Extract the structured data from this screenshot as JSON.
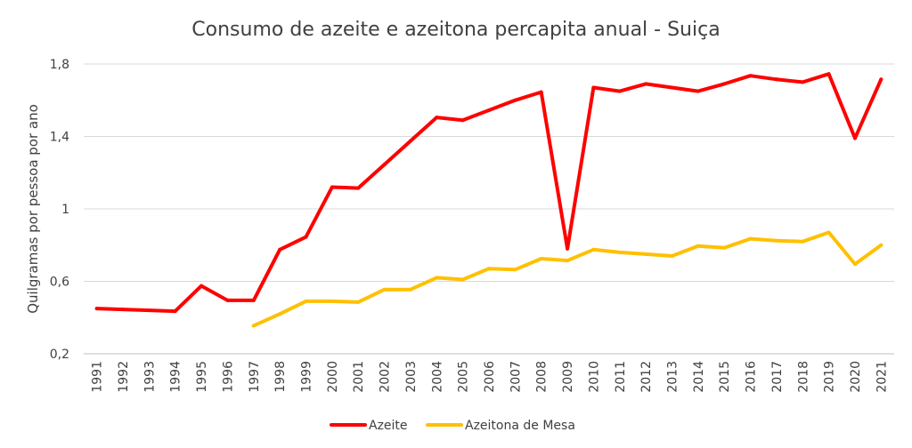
{
  "chart_data": {
    "type": "line",
    "title": "Consumo de azeite e azeitona percapita anual - Suiça",
    "xlabel": "",
    "ylabel": "Quilgramas por pessoa por ano",
    "ylim": [
      0.2,
      1.8
    ],
    "yticks": [
      0.2,
      0.6,
      1,
      1.4,
      1.8
    ],
    "ytick_labels": [
      "0,2",
      "0,6",
      "1",
      "1,4",
      "1,8"
    ],
    "grid": true,
    "legend": "bottom",
    "categories": [
      "1991",
      "1992",
      "1993",
      "1994",
      "1995",
      "1996",
      "1997",
      "1998",
      "1999",
      "2000",
      "2001",
      "2002",
      "2003",
      "2004",
      "2005",
      "2006",
      "2007",
      "2008",
      "2009",
      "2010",
      "2011",
      "2012",
      "2013",
      "2014",
      "2015",
      "2016",
      "2017",
      "2018",
      "2019",
      "2020",
      "2021"
    ],
    "series": [
      {
        "name": "Azeite",
        "color": "#ff0000",
        "values": [
          0.45,
          0.445,
          0.44,
          0.435,
          0.575,
          0.495,
          0.495,
          0.775,
          0.845,
          1.12,
          1.115,
          1.245,
          1.375,
          1.505,
          1.49,
          1.545,
          1.6,
          1.645,
          0.78,
          1.67,
          1.65,
          1.69,
          1.67,
          1.65,
          1.69,
          1.735,
          1.715,
          1.7,
          1.745,
          1.39,
          1.715
        ]
      },
      {
        "name": "Azeitona de Mesa",
        "color": "#ffc000",
        "values": [
          null,
          null,
          null,
          null,
          null,
          null,
          0.355,
          0.42,
          0.49,
          0.49,
          0.485,
          0.555,
          0.555,
          0.62,
          0.61,
          0.67,
          0.665,
          0.725,
          0.715,
          0.775,
          0.76,
          0.75,
          0.74,
          0.795,
          0.785,
          0.835,
          0.825,
          0.82,
          0.87,
          0.695,
          0.8
        ]
      }
    ]
  }
}
